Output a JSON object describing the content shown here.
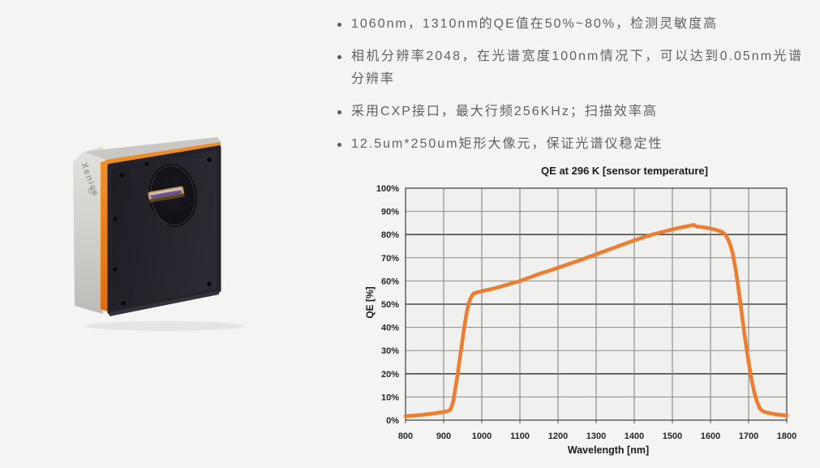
{
  "theme": {
    "page_bg": "#f4f4f3",
    "plot_bg": "#f0f0ee",
    "text_gray": "#616161",
    "chart_text": "#262626",
    "grid": "#8c8c8c",
    "grid_major": "#4a4a4a",
    "accent": "#ED7D31",
    "camera_orange": "#e87e1e"
  },
  "product": {
    "brand": "Xenics",
    "description": "InGaAs line-scan camera, black front plate with orange edge and silver body, circular aperture with line sensor",
    "colors": {
      "front_plate": "#242229",
      "edge_strip": "#e87e1e",
      "body_silver": "#d6d5d1",
      "sensor_purple": "#7b5fa8",
      "sensor_gold": "#c9a56a"
    }
  },
  "bullets": {
    "marker": "•",
    "items": [
      {
        "text": "1060nm，1310nm的QE值在50%~80%，检测灵敏度高",
        "justify": false
      },
      {
        "text": "相机分辨率2048，在光谱宽度100nm情况下，可以达到0.05nm光谱分辨率",
        "justify": true
      },
      {
        "text": "采用CXP接口，最大行频256KHz；扫描效率高",
        "justify": false
      },
      {
        "text": "12.5um*250um矩形大像元，保证光谱仪稳定性",
        "justify": false
      }
    ]
  },
  "chart_data": {
    "type": "line",
    "title": "QE at 296 K [sensor temperature]",
    "xlabel": "Wavelength [nm]",
    "ylabel": "QE [%]",
    "xlim": [
      800,
      1800
    ],
    "ylim": [
      0,
      100
    ],
    "x_ticks": [
      800,
      900,
      1000,
      1100,
      1200,
      1300,
      1400,
      1500,
      1600,
      1700,
      1800
    ],
    "y_ticks": [
      0,
      10,
      20,
      30,
      40,
      50,
      60,
      70,
      80,
      90,
      100
    ],
    "y_tick_labels": [
      "0%",
      "10%",
      "20%",
      "30%",
      "40%",
      "50%",
      "60%",
      "70%",
      "80%",
      "90%",
      "100%"
    ],
    "grid": true,
    "emphasized_hlines": [
      20,
      50,
      80
    ],
    "legend": "none",
    "line_color": "#ED7D31",
    "series": [
      {
        "name": "QE",
        "points": [
          [
            800,
            1.8
          ],
          [
            825,
            2.0
          ],
          [
            850,
            2.4
          ],
          [
            875,
            2.9
          ],
          [
            895,
            3.4
          ],
          [
            905,
            3.7
          ],
          [
            912,
            4.0
          ],
          [
            918,
            4.6
          ],
          [
            925,
            8
          ],
          [
            930,
            13
          ],
          [
            936,
            19
          ],
          [
            942,
            26
          ],
          [
            948,
            33
          ],
          [
            954,
            40
          ],
          [
            960,
            46
          ],
          [
            966,
            50.5
          ],
          [
            972,
            53
          ],
          [
            978,
            54.5
          ],
          [
            990,
            55.2
          ],
          [
            1000,
            55.6
          ],
          [
            1025,
            56.5
          ],
          [
            1050,
            57.6
          ],
          [
            1075,
            58.8
          ],
          [
            1100,
            60
          ],
          [
            1125,
            61.5
          ],
          [
            1150,
            63
          ],
          [
            1175,
            64.3
          ],
          [
            1200,
            65.7
          ],
          [
            1225,
            67.1
          ],
          [
            1250,
            68.5
          ],
          [
            1275,
            70
          ],
          [
            1300,
            71.5
          ],
          [
            1325,
            73
          ],
          [
            1350,
            74.5
          ],
          [
            1375,
            76
          ],
          [
            1400,
            77.5
          ],
          [
            1425,
            78.9
          ],
          [
            1450,
            80.1
          ],
          [
            1475,
            81.2
          ],
          [
            1500,
            82.2
          ],
          [
            1520,
            83.0
          ],
          [
            1540,
            83.6
          ],
          [
            1555,
            84.2
          ],
          [
            1565,
            83.4
          ],
          [
            1580,
            83.2
          ],
          [
            1600,
            82.6
          ],
          [
            1615,
            82.0
          ],
          [
            1630,
            81.2
          ],
          [
            1640,
            79.8
          ],
          [
            1650,
            76.5
          ],
          [
            1658,
            72
          ],
          [
            1666,
            65
          ],
          [
            1674,
            56
          ],
          [
            1682,
            46
          ],
          [
            1690,
            36
          ],
          [
            1698,
            27
          ],
          [
            1706,
            19
          ],
          [
            1714,
            12.5
          ],
          [
            1722,
            8
          ],
          [
            1730,
            4.8
          ],
          [
            1740,
            3.6
          ],
          [
            1755,
            3.0
          ],
          [
            1775,
            2.4
          ],
          [
            1800,
            2.0
          ]
        ]
      }
    ]
  }
}
